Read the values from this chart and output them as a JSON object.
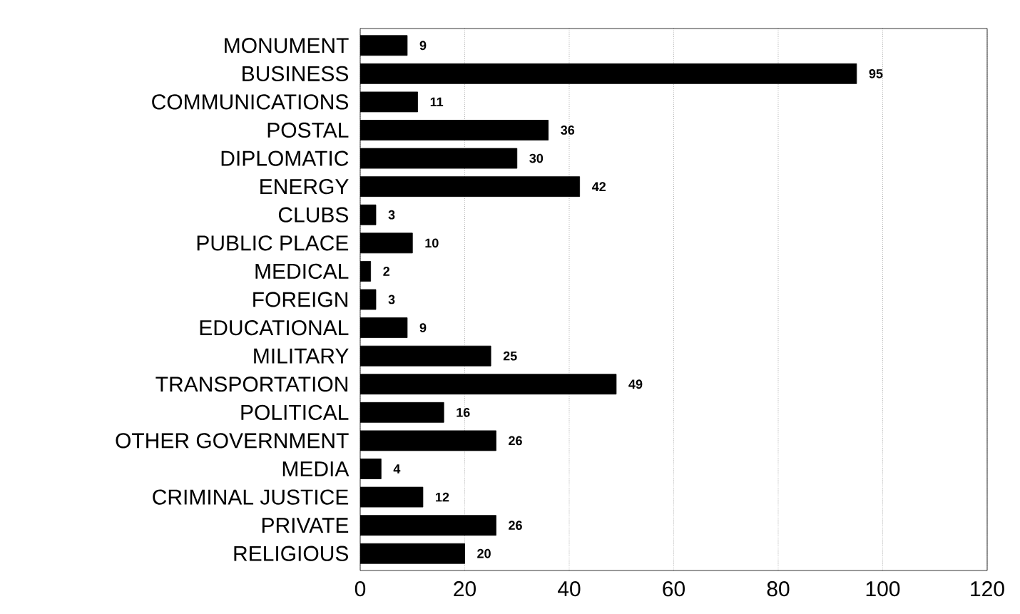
{
  "chart_data": {
    "type": "bar",
    "orientation": "horizontal",
    "categories": [
      "MONUMENT",
      "BUSINESS",
      "COMMUNICATIONS",
      "POSTAL",
      "DIPLOMATIC",
      "ENERGY",
      "CLUBS",
      "PUBLIC PLACE",
      "MEDICAL",
      "FOREIGN",
      "EDUCATIONAL",
      "MILITARY",
      "TRANSPORTATION",
      "POLITICAL",
      "OTHER GOVERNMENT",
      "MEDIA",
      "CRIMINAL JUSTICE",
      "PRIVATE",
      "RELIGIOUS"
    ],
    "values": [
      9,
      95,
      11,
      36,
      30,
      42,
      3,
      10,
      2,
      3,
      9,
      25,
      49,
      16,
      26,
      4,
      12,
      26,
      20
    ],
    "color": "#000000",
    "xlim": [
      0,
      120
    ],
    "xticks": [
      0,
      20,
      40,
      60,
      80,
      100,
      120
    ],
    "grid": "x",
    "data_labels": true
  }
}
